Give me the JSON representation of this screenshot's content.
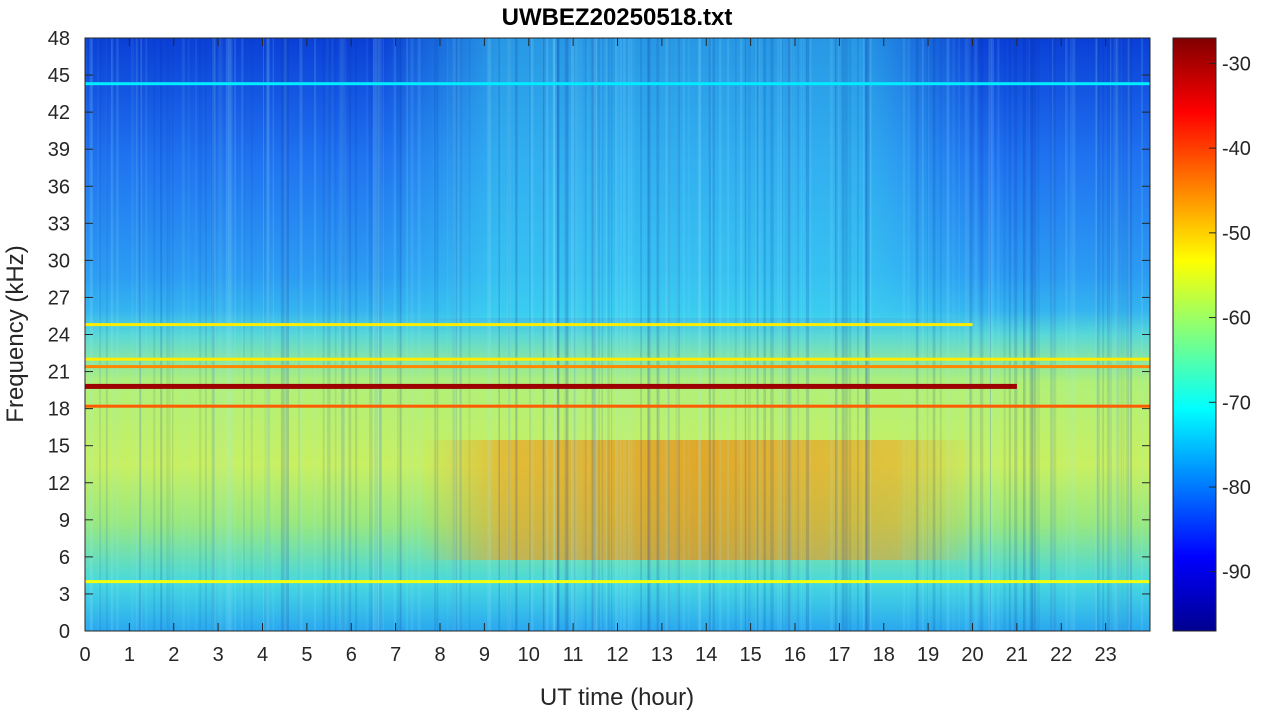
{
  "chart_data": {
    "type": "heatmap",
    "title": "UWBEZ20250518.txt",
    "xlabel": "UT time (hour)",
    "ylabel": "Frequency (kHz)",
    "xlim": [
      0,
      24
    ],
    "ylim": [
      0,
      48
    ],
    "x_ticks": [
      0,
      1,
      2,
      3,
      4,
      5,
      6,
      7,
      8,
      9,
      10,
      11,
      12,
      13,
      14,
      15,
      16,
      17,
      18,
      19,
      20,
      21,
      22,
      23
    ],
    "y_ticks": [
      0,
      3,
      6,
      9,
      12,
      15,
      18,
      21,
      24,
      27,
      30,
      33,
      36,
      39,
      42,
      45,
      48
    ],
    "colorbar": {
      "range": [
        -97,
        -27
      ],
      "ticks": [
        -90,
        -80,
        -70,
        -60,
        -50,
        -40,
        -30
      ],
      "colormap": "jet"
    },
    "features": [
      {
        "label": "narrowband line ~19.8 kHz",
        "freq_khz": 19.8,
        "t_start": 0,
        "t_end": 21,
        "level_db": -29
      },
      {
        "label": "narrowband line ~18.2 kHz",
        "freq_khz": 18.2,
        "t_start": 0,
        "t_end": 24,
        "level_db": -42
      },
      {
        "label": "narrowband line ~21.4 kHz",
        "freq_khz": 21.4,
        "t_start": 0,
        "t_end": 24,
        "level_db": -45
      },
      {
        "label": "narrowband line ~24.8 kHz",
        "freq_khz": 24.8,
        "t_start": 0,
        "t_end": 20,
        "level_db": -52
      },
      {
        "label": "narrowband line ~22.0 kHz",
        "freq_khz": 22.0,
        "t_start": 0,
        "t_end": 24,
        "level_db": -52
      },
      {
        "label": "line ~4.0 kHz",
        "freq_khz": 4.0,
        "t_start": 0,
        "t_end": 24,
        "level_db": -54
      },
      {
        "label": "line ~44.3 kHz",
        "freq_khz": 44.3,
        "t_start": 0,
        "t_end": 24,
        "level_db": -72
      },
      {
        "label": "daytime broadband enhancement 6-15 kHz",
        "f_low_khz": 6,
        "f_high_khz": 15,
        "t_start": 9,
        "t_end": 20,
        "level_db": -46
      }
    ]
  }
}
